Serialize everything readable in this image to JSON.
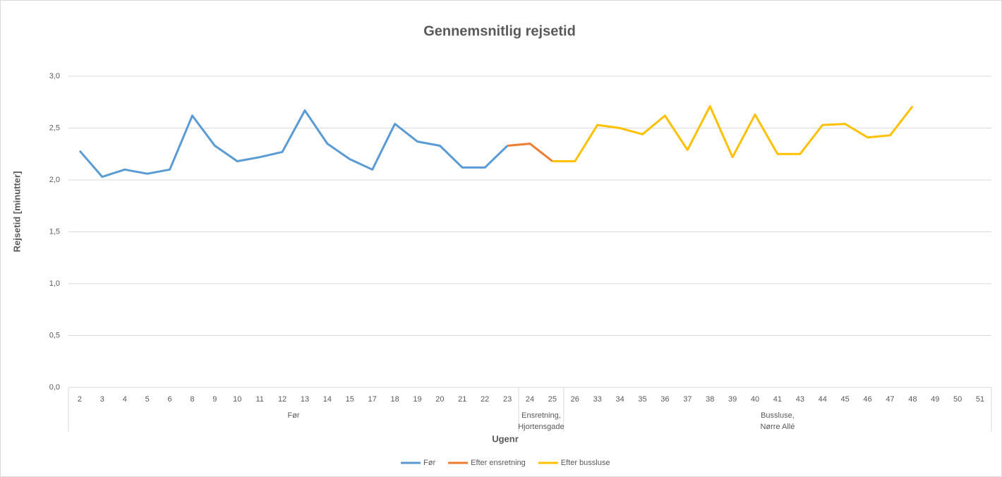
{
  "chart_data": {
    "type": "line",
    "title": "Gennemsnitlig rejsetid",
    "y_label": "Rejsetid [minutter]",
    "x_label": "Ugenr",
    "groups": [
      {
        "label": [
          "Før"
        ],
        "categories": [
          "2",
          "3",
          "4",
          "5",
          "6",
          "8",
          "9",
          "10",
          "11",
          "12",
          "13",
          "14",
          "15",
          "17",
          "18",
          "19",
          "20",
          "21",
          "22",
          "23"
        ]
      },
      {
        "label": [
          "Ensretning,",
          "Hjortensgade"
        ],
        "categories": [
          "24",
          "25"
        ]
      },
      {
        "label": [
          "Bussluse,",
          "Nørre Allé"
        ],
        "categories": [
          "26",
          "33",
          "34",
          "35",
          "36",
          "37",
          "38",
          "39",
          "40",
          "41",
          "43",
          "44",
          "45",
          "46",
          "47",
          "48",
          "49",
          "50",
          "51"
        ]
      }
    ],
    "series": [
      {
        "name": "Før",
        "color": "#5b9bd5",
        "values": [
          2.28,
          2.03,
          2.1,
          2.06,
          2.1,
          2.62,
          2.33,
          2.18,
          2.22,
          2.27,
          2.67,
          2.35,
          2.2,
          2.1,
          2.54,
          2.37,
          2.33,
          2.12,
          2.12,
          2.33,
          null,
          null,
          null,
          null,
          null,
          null,
          null,
          null,
          null,
          null,
          null,
          null,
          null,
          null,
          null,
          null,
          null,
          null,
          null,
          null,
          null
        ]
      },
      {
        "name": "Efter ensretning",
        "color": "#ed7d31",
        "values": [
          null,
          null,
          null,
          null,
          null,
          null,
          null,
          null,
          null,
          null,
          null,
          null,
          null,
          null,
          null,
          null,
          null,
          null,
          null,
          2.33,
          2.35,
          2.18,
          null,
          null,
          null,
          null,
          null,
          null,
          null,
          null,
          null,
          null,
          null,
          null,
          null,
          null,
          null,
          null,
          null,
          null,
          null
        ]
      },
      {
        "name": "Efter bussluse",
        "color": "#ffc000",
        "values": [
          null,
          null,
          null,
          null,
          null,
          null,
          null,
          null,
          null,
          null,
          null,
          null,
          null,
          null,
          null,
          null,
          null,
          null,
          null,
          null,
          null,
          2.18,
          2.18,
          2.53,
          2.5,
          2.44,
          2.62,
          2.29,
          2.71,
          2.22,
          2.63,
          2.25,
          2.25,
          2.53,
          2.54,
          2.41,
          2.43,
          2.71,
          null,
          null,
          null
        ]
      }
    ],
    "ylim": [
      0,
      3
    ],
    "yticks": [
      {
        "value": 0,
        "label": "0,0"
      },
      {
        "value": 0.5,
        "label": "0,5"
      },
      {
        "value": 1,
        "label": "1,0"
      },
      {
        "value": 1.5,
        "label": "1,5"
      },
      {
        "value": 2,
        "label": "2,0"
      },
      {
        "value": 2.5,
        "label": "2,5"
      },
      {
        "value": 3,
        "label": "3,0"
      }
    ],
    "grid": true,
    "legend": "bottom"
  }
}
